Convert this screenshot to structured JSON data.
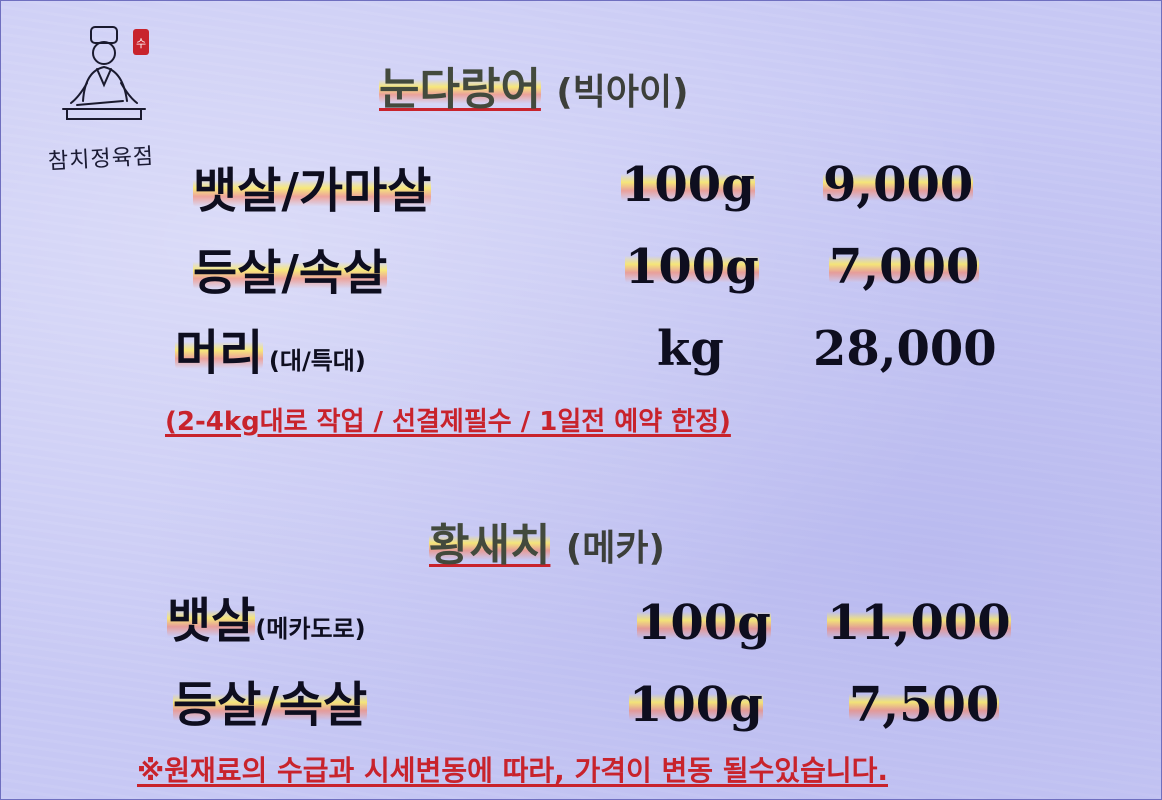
{
  "logo": {
    "name": "참치정육점",
    "stamp": "수"
  },
  "section1": {
    "title_main": "눈다랑어",
    "title_sub": "(빅아이)",
    "items": [
      {
        "name": "뱃살/가마살",
        "weight": "100g",
        "price": "9,000"
      },
      {
        "name": "등살/속살",
        "weight": "100g",
        "price": "7,000"
      },
      {
        "name": "머리",
        "note": "(대/특대)",
        "weight": "kg",
        "price": "28,000"
      }
    ],
    "remark": "(2-4kg대로 작업 / 선결제필수 / 1일전 예약 한정)"
  },
  "section2": {
    "title_main": "황새치",
    "title_sub": "(메카)",
    "items": [
      {
        "name": "뱃살",
        "note": "(메카도로)",
        "weight": "100g",
        "price": "11,000"
      },
      {
        "name": "등살/속살",
        "weight": "100g",
        "price": "7,500"
      }
    ]
  },
  "footer": {
    "notice": "※원재료의 수급과 시세변동에 따라, 가격이 변동 될수있습니다."
  },
  "colors": {
    "background": "#c7c8f4",
    "text": "#0e0e1f",
    "accent_red": "#c8232c",
    "highlight": "#ffec5a"
  }
}
